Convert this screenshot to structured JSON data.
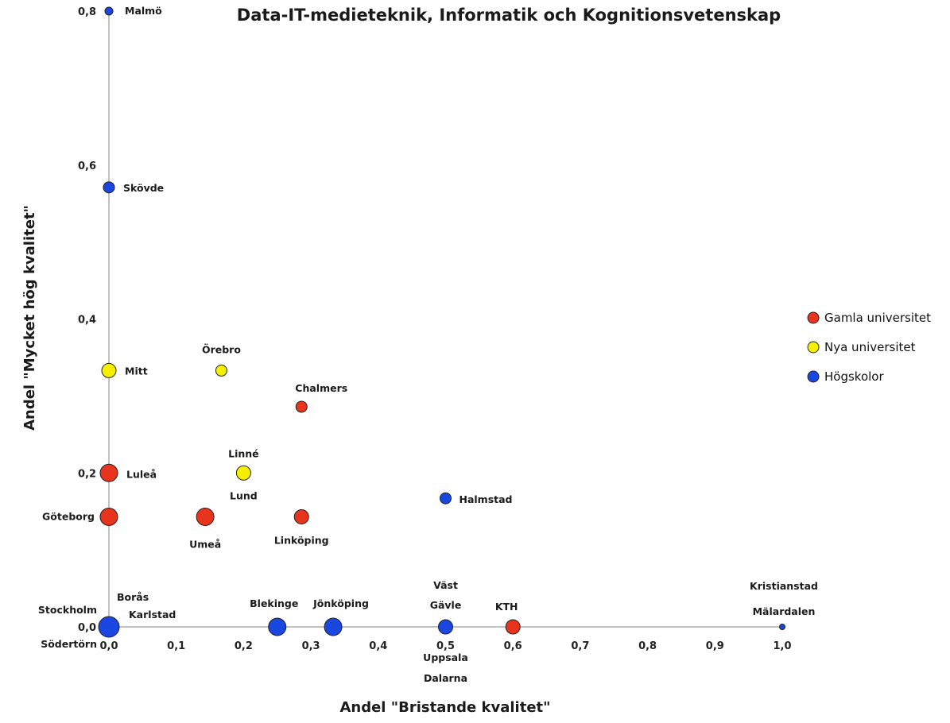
{
  "chart_data": {
    "type": "scatter",
    "title": "Data-IT-medieteknik, Informatik och Kognitionsvetenskap",
    "xlabel": "Andel \"Bristande kvalitet\"",
    "ylabel": "Andel \"Mycket hög kvalitet\"",
    "xlim": [
      0,
      1.0
    ],
    "ylim": [
      0,
      0.8
    ],
    "x_ticks": [
      "0,0",
      "0,1",
      "0,2",
      "0,3",
      "0,4",
      "0,5",
      "0,6",
      "0,7",
      "0,8",
      "0,9",
      "1,0"
    ],
    "y_ticks": [
      "0,0",
      "0,2",
      "0,4",
      "0,6",
      "0,8"
    ],
    "grid": false,
    "legend_position": "right",
    "legend": [
      {
        "name": "Gamla universitet",
        "color": "#e8341c"
      },
      {
        "name": "Nya universitet",
        "color": "#f5f000"
      },
      {
        "name": "Högskolor",
        "color": "#1a47e0"
      }
    ],
    "points": [
      {
        "x": 0.0,
        "y": 0.8,
        "group": 2,
        "size": "small",
        "labels": [
          "Malmö"
        ]
      },
      {
        "x": 0.0,
        "y": 0.571,
        "group": 2,
        "size": "medium",
        "labels": [
          "Skövde"
        ]
      },
      {
        "x": 0.0,
        "y": 0.333,
        "group": 1,
        "size": "large",
        "labels": [
          "Mitt"
        ]
      },
      {
        "x": 0.167,
        "y": 0.333,
        "group": 1,
        "size": "medium",
        "labels": [
          "Örebro"
        ]
      },
      {
        "x": 0.286,
        "y": 0.286,
        "group": 0,
        "size": "medium",
        "labels": [
          "Chalmers"
        ]
      },
      {
        "x": 0.0,
        "y": 0.2,
        "group": 0,
        "size": "xlarge",
        "labels": [
          "Luleå"
        ]
      },
      {
        "x": 0.2,
        "y": 0.2,
        "group": 1,
        "size": "large",
        "labels": [
          "Linné",
          "Lund"
        ]
      },
      {
        "x": 0.0,
        "y": 0.143,
        "group": 0,
        "size": "xlarge",
        "labels": [
          "Göteborg"
        ]
      },
      {
        "x": 0.143,
        "y": 0.143,
        "group": 0,
        "size": "xlarge",
        "labels": [
          "Umeå"
        ]
      },
      {
        "x": 0.286,
        "y": 0.143,
        "group": 0,
        "size": "large",
        "labels": [
          "Linköping"
        ]
      },
      {
        "x": 0.5,
        "y": 0.167,
        "group": 2,
        "size": "medium",
        "labels": [
          "Halmstad"
        ]
      },
      {
        "x": 0.0,
        "y": 0.0,
        "group": 2,
        "size": "xxlarge",
        "labels": [
          "Stockholm",
          "Borås",
          "Karlstad",
          "Södertörn"
        ]
      },
      {
        "x": 0.25,
        "y": 0.0,
        "group": 2,
        "size": "xlarge",
        "labels": [
          "Blekinge"
        ]
      },
      {
        "x": 0.333,
        "y": 0.0,
        "group": 2,
        "size": "xlarge",
        "labels": [
          "Jönköping"
        ]
      },
      {
        "x": 0.5,
        "y": 0.0,
        "group": 2,
        "size": "large",
        "labels": [
          "Väst",
          "Gävle",
          "Uppsala",
          "Dalarna"
        ]
      },
      {
        "x": 0.6,
        "y": 0.0,
        "group": 0,
        "size": "large",
        "labels": [
          "KTH"
        ]
      },
      {
        "x": 1.0,
        "y": 0.0,
        "group": 2,
        "size": "tiny",
        "labels": [
          "Kristianstad",
          "Mälardalen"
        ]
      }
    ]
  }
}
